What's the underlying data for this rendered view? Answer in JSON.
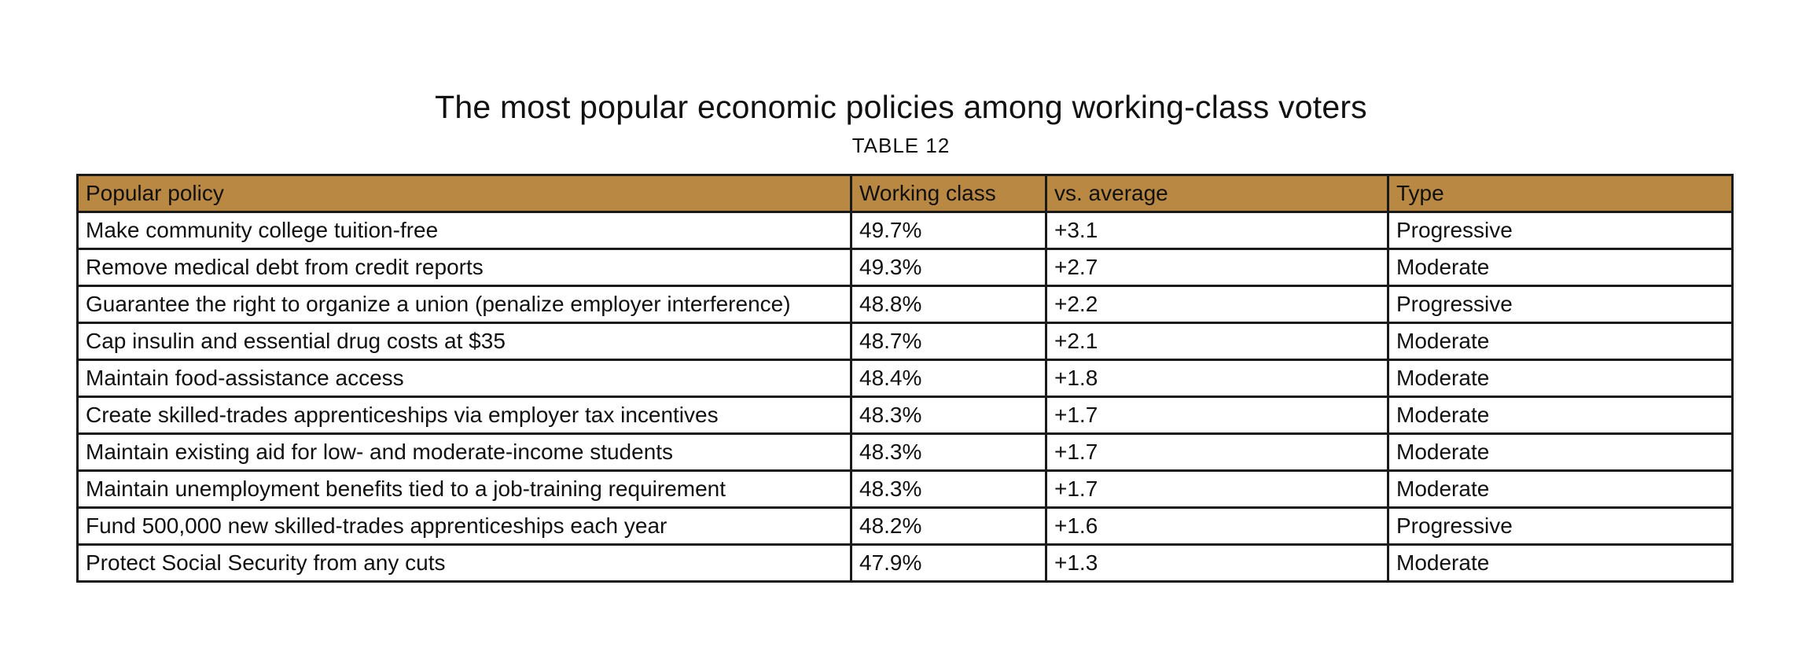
{
  "title": "The most popular economic policies among working-class voters",
  "subtitle": "TABLE 12",
  "colors": {
    "header_background": "#b98843",
    "border": "#1a1a1a",
    "text": "#111111"
  },
  "table": {
    "headers": [
      "Popular policy",
      "Working class",
      "vs. average",
      "Type"
    ],
    "rows": [
      [
        "Make community college tuition-free",
        "49.7%",
        "+3.1",
        "Progressive"
      ],
      [
        "Remove medical debt from credit reports",
        "49.3%",
        "+2.7",
        "Moderate"
      ],
      [
        "Guarantee the right to organize a union (penalize employer interference)",
        "48.8%",
        "+2.2",
        "Progressive"
      ],
      [
        "Cap insulin and essential drug costs at $35",
        "48.7%",
        "+2.1",
        "Moderate"
      ],
      [
        "Maintain food-assistance access",
        "48.4%",
        "+1.8",
        "Moderate"
      ],
      [
        "Create skilled-trades apprenticeships via employer tax incentives",
        "48.3%",
        "+1.7",
        "Moderate"
      ],
      [
        "Maintain existing aid for low- and moderate-income students",
        "48.3%",
        "+1.7",
        "Moderate"
      ],
      [
        "Maintain unemployment benefits tied to a job-training requirement",
        "48.3%",
        "+1.7",
        "Moderate"
      ],
      [
        "Fund 500,000 new skilled-trades apprenticeships each year",
        "48.2%",
        "+1.6",
        "Progressive"
      ],
      [
        "Protect Social Security from any cuts",
        "47.9%",
        "+1.3",
        "Moderate"
      ]
    ]
  }
}
